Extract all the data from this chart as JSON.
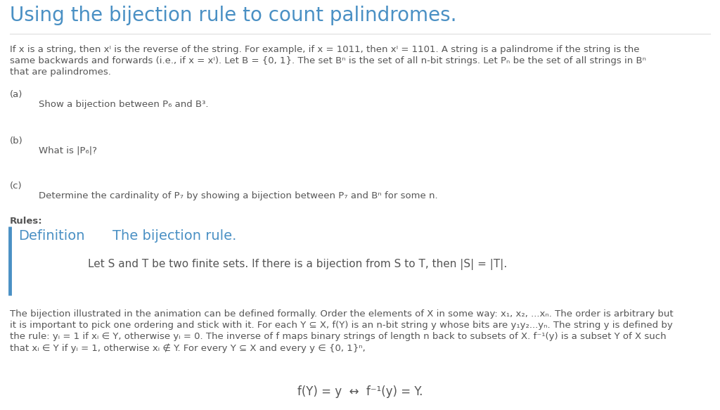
{
  "title": "Using the bijection rule to count palindromes.",
  "title_color": "#4a90c4",
  "background_color": "#ffffff",
  "text_color": "#555555",
  "blue_color": "#4a90c4",
  "p1_l1": "If x is a string, then xᴵ is the reverse of the string. For example, if x = 1011, then xᴵ = 1101. A string is a palindrome if the string is the",
  "p1_l2": "same backwards and forwards (i.e., if x = xᴵ). Let B = {0, 1}. The set Bⁿ is the set of all n-bit strings. Let Pₙ be the set of all strings in Bⁿ",
  "p1_l3": "that are palindromes.",
  "label_a": "(a)",
  "text_a": "Show a bijection between P₆ and B³.",
  "label_b": "(b)",
  "text_b": "What is |P₆|?",
  "label_c": "(c)",
  "text_c": "Determine the cardinality of P₇ by showing a bijection between P₇ and Bⁿ for some n.",
  "rules_label": "Rules:",
  "def_label": "Definition",
  "def_title": "The bijection rule.",
  "def_body": "Let S and T be two finite sets. If there is a bijection from S to T, then |S| = |T|.",
  "p2_l1": "The bijection illustrated in the animation can be defined formally. Order the elements of X in some way: x₁, x₂, ...xₙ. The order is arbitrary but",
  "p2_l2": "it is important to pick one ordering and stick with it. For each Y ⊆ X, f(Y) is an n-bit string y whose bits are y₁y₂...yₙ. The string y is defined by",
  "p2_l3": "the rule: yᵢ = 1 if xᵢ ∈ Y, otherwise yᵢ = 0. The inverse of f maps binary strings of length n back to subsets of X. f⁻¹(y) is a subset Y of X such",
  "p2_l4": "that xᵢ ∈ Y if yᵢ = 1, otherwise xᵢ ∉ Y. For every Y ⊆ X and every y ∈ {0, 1}ⁿ,",
  "formula": "f(Y) = y  ↔  f⁻¹(y) = Y.",
  "title_fs": 20,
  "body_fs": 9.5,
  "def_header_fs": 14,
  "def_body_fs": 11,
  "formula_fs": 12
}
